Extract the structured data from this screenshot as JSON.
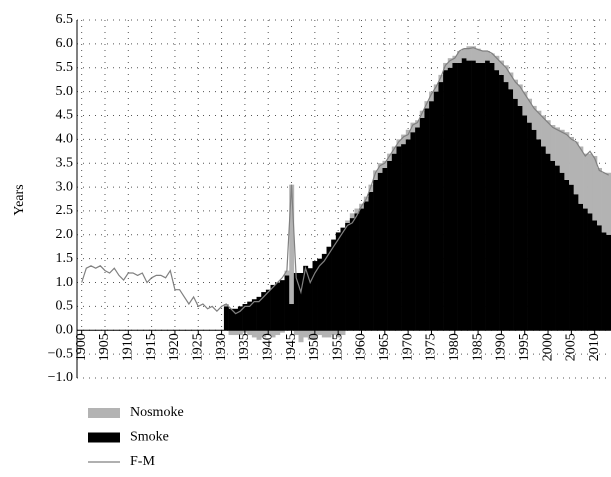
{
  "chart_data": {
    "type": "bar-line",
    "ylabel": "Years",
    "x": [
      1900,
      1901,
      1902,
      1903,
      1904,
      1905,
      1906,
      1907,
      1908,
      1909,
      1910,
      1911,
      1912,
      1913,
      1914,
      1915,
      1916,
      1917,
      1918,
      1919,
      1920,
      1921,
      1922,
      1923,
      1924,
      1925,
      1926,
      1927,
      1928,
      1929,
      1930,
      1931,
      1932,
      1933,
      1934,
      1935,
      1936,
      1937,
      1938,
      1939,
      1940,
      1941,
      1942,
      1943,
      1944,
      1945,
      1946,
      1947,
      1948,
      1949,
      1950,
      1951,
      1952,
      1953,
      1954,
      1955,
      1956,
      1957,
      1958,
      1959,
      1960,
      1961,
      1962,
      1963,
      1964,
      1965,
      1966,
      1967,
      1968,
      1969,
      1970,
      1971,
      1972,
      1973,
      1974,
      1975,
      1976,
      1977,
      1978,
      1979,
      1980,
      1981,
      1982,
      1983,
      1984,
      1985,
      1986,
      1987,
      1988,
      1989,
      1990,
      1991,
      1992,
      1993,
      1994,
      1995,
      1996,
      1997,
      1998,
      1999,
      2000,
      2001,
      2002,
      2003,
      2004,
      2005,
      2006,
      2007,
      2008,
      2009,
      2010,
      2011,
      2012,
      2013
    ],
    "series": [
      {
        "name": "Nosmoke",
        "kind": "bar",
        "color": "#b3b3b3",
        "values": [
          null,
          null,
          null,
          null,
          null,
          null,
          null,
          null,
          null,
          null,
          null,
          null,
          null,
          null,
          null,
          null,
          null,
          null,
          null,
          null,
          null,
          null,
          null,
          null,
          null,
          null,
          null,
          null,
          null,
          null,
          null,
          0.05,
          -0.1,
          -0.1,
          -0.1,
          -0.05,
          -0.1,
          -0.15,
          -0.2,
          -0.15,
          -0.1,
          -0.15,
          -0.1,
          -0.05,
          0.1,
          2.5,
          -0.1,
          -0.25,
          -0.15,
          -0.2,
          -0.2,
          -0.1,
          -0.15,
          -0.15,
          -0.1,
          -0.15,
          -0.1,
          0.05,
          0.1,
          0.1,
          0.1,
          0.1,
          0.15,
          0.2,
          0.2,
          0.15,
          0.15,
          0.15,
          0.15,
          0.2,
          0.2,
          0.2,
          0.15,
          0.15,
          0.15,
          0.2,
          0.15,
          0.15,
          0.15,
          0.2,
          0.15,
          0.25,
          0.2,
          0.3,
          0.3,
          0.3,
          0.25,
          0.2,
          0.2,
          0.3,
          0.3,
          0.35,
          0.35,
          0.4,
          0.45,
          0.5,
          0.5,
          0.5,
          0.6,
          0.65,
          0.7,
          0.75,
          0.8,
          0.9,
          1.0,
          1.0,
          1.1,
          1.2,
          1.15,
          1.25,
          1.35,
          1.2,
          1.25,
          1.3
        ]
      },
      {
        "name": "Smoke",
        "kind": "bar",
        "color": "#000000",
        "values": [
          null,
          null,
          null,
          null,
          null,
          null,
          null,
          null,
          null,
          null,
          null,
          null,
          null,
          null,
          null,
          null,
          null,
          null,
          null,
          null,
          null,
          null,
          null,
          null,
          null,
          null,
          null,
          null,
          null,
          null,
          null,
          0.5,
          0.45,
          0.45,
          0.5,
          0.55,
          0.6,
          0.65,
          0.7,
          0.8,
          0.85,
          0.95,
          1.0,
          1.05,
          1.15,
          0.55,
          1.2,
          1.2,
          1.35,
          1.3,
          1.45,
          1.5,
          1.6,
          1.75,
          1.9,
          2.05,
          2.15,
          2.25,
          2.35,
          2.45,
          2.55,
          2.7,
          2.9,
          3.15,
          3.3,
          3.4,
          3.55,
          3.7,
          3.85,
          3.9,
          4.0,
          4.15,
          4.25,
          4.45,
          4.65,
          4.8,
          5.0,
          5.2,
          5.45,
          5.5,
          5.6,
          5.6,
          5.7,
          5.65,
          5.65,
          5.6,
          5.6,
          5.65,
          5.6,
          5.45,
          5.35,
          5.2,
          5.05,
          4.85,
          4.7,
          4.5,
          4.35,
          4.2,
          4.0,
          3.85,
          3.7,
          3.55,
          3.45,
          3.3,
          3.15,
          3.05,
          2.85,
          2.65,
          2.55,
          2.45,
          2.3,
          2.2,
          2.05,
          2.0
        ]
      },
      {
        "name": "F-M",
        "kind": "line",
        "color": "#808080",
        "values": [
          1.0,
          1.3,
          1.35,
          1.3,
          1.35,
          1.25,
          1.2,
          1.3,
          1.15,
          1.05,
          1.2,
          1.2,
          1.15,
          1.2,
          1.0,
          1.1,
          1.15,
          1.15,
          1.1,
          1.25,
          0.85,
          0.85,
          0.7,
          0.55,
          0.7,
          0.5,
          0.55,
          0.45,
          0.5,
          0.4,
          0.5,
          0.55,
          0.45,
          0.35,
          0.4,
          0.5,
          0.5,
          0.6,
          0.6,
          0.7,
          0.8,
          0.9,
          1.0,
          1.1,
          1.25,
          3.05,
          1.1,
          0.8,
          1.3,
          1.0,
          1.2,
          1.35,
          1.45,
          1.6,
          1.75,
          1.9,
          2.05,
          2.2,
          2.25,
          2.4,
          2.6,
          2.75,
          3.0,
          3.3,
          3.45,
          3.5,
          3.65,
          3.8,
          3.95,
          4.05,
          4.1,
          4.3,
          4.35,
          4.55,
          4.75,
          4.95,
          5.1,
          5.3,
          5.55,
          5.65,
          5.7,
          5.85,
          5.9,
          5.9,
          5.92,
          5.88,
          5.85,
          5.85,
          5.8,
          5.7,
          5.6,
          5.5,
          5.35,
          5.2,
          5.1,
          4.95,
          4.8,
          4.65,
          4.55,
          4.45,
          4.35,
          4.25,
          4.2,
          4.15,
          4.1,
          4.0,
          3.95,
          3.8,
          3.65,
          3.75,
          3.6,
          3.35,
          3.3,
          3.25
        ]
      }
    ],
    "xlim": [
      1899,
      2013.5
    ],
    "xticks": [
      1900,
      1905,
      1910,
      1915,
      1920,
      1925,
      1930,
      1935,
      1940,
      1945,
      1950,
      1955,
      1960,
      1965,
      1970,
      1975,
      1980,
      1985,
      1990,
      1995,
      2000,
      2005,
      2010
    ],
    "ylim": [
      -1.0,
      6.5
    ],
    "yticks": [
      {
        "value": -1.0,
        "label": "−1.0"
      },
      {
        "value": -0.5,
        "label": "−0.5"
      },
      {
        "value": 0,
        "label": "0.0"
      },
      {
        "value": 0.5,
        "label": "0.5"
      },
      {
        "value": 1.0,
        "label": "1.0"
      },
      {
        "value": 1.5,
        "label": "1.5"
      },
      {
        "value": 2.0,
        "label": "2.0"
      },
      {
        "value": 2.5,
        "label": "2.5"
      },
      {
        "value": 3.0,
        "label": "3.0"
      },
      {
        "value": 3.5,
        "label": "3.5"
      },
      {
        "value": 4.0,
        "label": "4.0"
      },
      {
        "value": 4.5,
        "label": "4.5"
      },
      {
        "value": 5.0,
        "label": "5.0"
      },
      {
        "value": 5.5,
        "label": "5.5"
      },
      {
        "value": 6.0,
        "label": "6.0"
      },
      {
        "value": 6.5,
        "label": "6.5"
      }
    ],
    "grid": true,
    "legend": "bottom-left"
  }
}
